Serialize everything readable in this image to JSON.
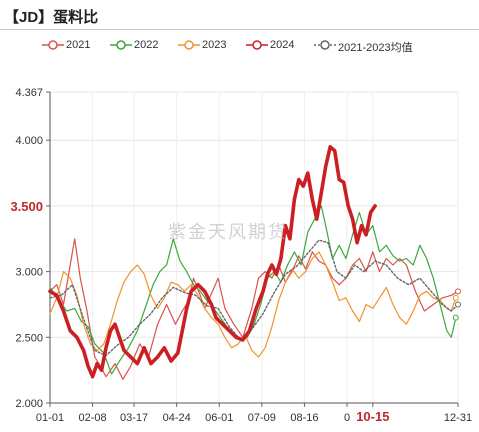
{
  "header": {
    "title": "【JD】蛋料比"
  },
  "watermark": "紫金天风期货",
  "chart_data": {
    "type": "line",
    "title": "【JD】蛋料比",
    "ylim": [
      2.0,
      4.367
    ],
    "y_ticks": [
      2.0,
      2.5,
      3.0,
      3.5,
      4.0,
      4.367
    ],
    "y_tick_labels": [
      "2.000",
      "2.500",
      "3.000",
      "3.500",
      "4.000",
      "4.367"
    ],
    "y_highlight": {
      "value": 3.5,
      "label": "3.500",
      "color": "#c0282e"
    },
    "x_tick_labels": [
      "01-01",
      "02-08",
      "03-17",
      "04-24",
      "06-01",
      "07-09",
      "08-16",
      "0",
      "10-15",
      "12-31"
    ],
    "x_tick_days": [
      0,
      38,
      75,
      113,
      151,
      189,
      227,
      265,
      288,
      364
    ],
    "x_highlight": {
      "label": "10-15",
      "color": "#c0282e"
    },
    "legend_position": "top",
    "series": [
      {
        "name": "2021",
        "color": "#d9534a",
        "width": 1.2,
        "dash": "",
        "points": [
          [
            0,
            2.85
          ],
          [
            6,
            2.9
          ],
          [
            12,
            2.75
          ],
          [
            18,
            3.05
          ],
          [
            22,
            3.25
          ],
          [
            27,
            2.95
          ],
          [
            33,
            2.7
          ],
          [
            40,
            2.35
          ],
          [
            45,
            2.28
          ],
          [
            50,
            2.2
          ],
          [
            58,
            2.3
          ],
          [
            65,
            2.18
          ],
          [
            72,
            2.28
          ],
          [
            80,
            2.45
          ],
          [
            88,
            2.35
          ],
          [
            96,
            2.6
          ],
          [
            104,
            2.75
          ],
          [
            112,
            2.6
          ],
          [
            118,
            2.7
          ],
          [
            124,
            2.78
          ],
          [
            128,
            2.95
          ],
          [
            134,
            2.82
          ],
          [
            138,
            2.72
          ],
          [
            145,
            2.85
          ],
          [
            150,
            2.95
          ],
          [
            156,
            2.72
          ],
          [
            164,
            2.6
          ],
          [
            172,
            2.5
          ],
          [
            180,
            2.72
          ],
          [
            186,
            2.95
          ],
          [
            192,
            3.0
          ],
          [
            198,
            2.95
          ],
          [
            204,
            3.05
          ],
          [
            210,
            2.92
          ],
          [
            216,
            3.0
          ],
          [
            222,
            3.12
          ],
          [
            228,
            3.02
          ],
          [
            234,
            3.15
          ],
          [
            240,
            3.08
          ],
          [
            246,
            3.05
          ],
          [
            252,
            2.95
          ],
          [
            258,
            2.9
          ],
          [
            264,
            2.95
          ],
          [
            270,
            3.05
          ],
          [
            276,
            3.1
          ],
          [
            282,
            3.0
          ],
          [
            288,
            3.15
          ],
          [
            294,
            3.0
          ],
          [
            300,
            3.1
          ],
          [
            306,
            3.05
          ],
          [
            312,
            3.1
          ],
          [
            318,
            3.05
          ],
          [
            326,
            2.85
          ],
          [
            334,
            2.7
          ],
          [
            342,
            2.75
          ],
          [
            350,
            2.8
          ],
          [
            358,
            2.82
          ],
          [
            364,
            2.85
          ]
        ]
      },
      {
        "name": "2022",
        "color": "#3da83d",
        "width": 1.2,
        "dash": "",
        "points": [
          [
            0,
            2.88
          ],
          [
            8,
            2.78
          ],
          [
            15,
            2.7
          ],
          [
            22,
            2.72
          ],
          [
            28,
            2.62
          ],
          [
            34,
            2.58
          ],
          [
            40,
            2.45
          ],
          [
            48,
            2.38
          ],
          [
            55,
            2.22
          ],
          [
            62,
            2.32
          ],
          [
            70,
            2.42
          ],
          [
            78,
            2.55
          ],
          [
            86,
            2.75
          ],
          [
            92,
            2.9
          ],
          [
            98,
            3.0
          ],
          [
            104,
            3.05
          ],
          [
            110,
            3.25
          ],
          [
            116,
            3.08
          ],
          [
            122,
            3.0
          ],
          [
            128,
            2.9
          ],
          [
            134,
            2.85
          ],
          [
            140,
            2.78
          ],
          [
            146,
            2.72
          ],
          [
            152,
            2.65
          ],
          [
            158,
            2.58
          ],
          [
            164,
            2.52
          ],
          [
            170,
            2.48
          ],
          [
            176,
            2.5
          ],
          [
            182,
            2.6
          ],
          [
            188,
            2.75
          ],
          [
            194,
            2.95
          ],
          [
            200,
            3.0
          ],
          [
            206,
            2.92
          ],
          [
            212,
            3.05
          ],
          [
            218,
            3.15
          ],
          [
            224,
            3.05
          ],
          [
            230,
            3.3
          ],
          [
            236,
            3.4
          ],
          [
            242,
            3.5
          ],
          [
            246,
            3.35
          ],
          [
            252,
            3.1
          ],
          [
            258,
            3.2
          ],
          [
            264,
            3.1
          ],
          [
            270,
            3.28
          ],
          [
            276,
            3.45
          ],
          [
            282,
            3.28
          ],
          [
            288,
            3.35
          ],
          [
            294,
            3.15
          ],
          [
            300,
            3.2
          ],
          [
            306,
            3.12
          ],
          [
            312,
            3.08
          ],
          [
            318,
            3.1
          ],
          [
            324,
            3.05
          ],
          [
            330,
            3.2
          ],
          [
            336,
            3.1
          ],
          [
            342,
            2.95
          ],
          [
            348,
            2.75
          ],
          [
            354,
            2.55
          ],
          [
            358,
            2.5
          ],
          [
            362,
            2.65
          ]
        ]
      },
      {
        "name": "2023",
        "color": "#f0932b",
        "width": 1.2,
        "dash": "",
        "points": [
          [
            0,
            2.68
          ],
          [
            6,
            2.8
          ],
          [
            12,
            3.0
          ],
          [
            18,
            2.95
          ],
          [
            24,
            2.82
          ],
          [
            30,
            2.6
          ],
          [
            36,
            2.45
          ],
          [
            42,
            2.4
          ],
          [
            48,
            2.45
          ],
          [
            54,
            2.6
          ],
          [
            60,
            2.78
          ],
          [
            66,
            2.92
          ],
          [
            72,
            3.0
          ],
          [
            78,
            3.05
          ],
          [
            84,
            2.98
          ],
          [
            90,
            2.82
          ],
          [
            96,
            2.72
          ],
          [
            102,
            2.8
          ],
          [
            108,
            2.92
          ],
          [
            114,
            2.9
          ],
          [
            120,
            2.85
          ],
          [
            126,
            2.9
          ],
          [
            132,
            2.82
          ],
          [
            138,
            2.72
          ],
          [
            144,
            2.65
          ],
          [
            150,
            2.6
          ],
          [
            156,
            2.5
          ],
          [
            162,
            2.42
          ],
          [
            168,
            2.45
          ],
          [
            174,
            2.52
          ],
          [
            180,
            2.4
          ],
          [
            186,
            2.35
          ],
          [
            192,
            2.42
          ],
          [
            198,
            2.58
          ],
          [
            204,
            2.78
          ],
          [
            210,
            2.92
          ],
          [
            216,
            3.02
          ],
          [
            222,
            2.95
          ],
          [
            228,
            3.0
          ],
          [
            234,
            3.1
          ],
          [
            240,
            3.15
          ],
          [
            246,
            3.05
          ],
          [
            252,
            2.92
          ],
          [
            258,
            2.78
          ],
          [
            264,
            2.8
          ],
          [
            270,
            2.7
          ],
          [
            276,
            2.62
          ],
          [
            282,
            2.75
          ],
          [
            288,
            2.72
          ],
          [
            294,
            2.8
          ],
          [
            300,
            2.88
          ],
          [
            306,
            2.75
          ],
          [
            312,
            2.65
          ],
          [
            318,
            2.6
          ],
          [
            324,
            2.7
          ],
          [
            330,
            2.82
          ],
          [
            336,
            2.85
          ],
          [
            342,
            2.8
          ],
          [
            348,
            2.78
          ],
          [
            354,
            2.72
          ],
          [
            358,
            2.7
          ],
          [
            362,
            2.8
          ]
        ]
      },
      {
        "name": "2024",
        "color": "#cc1f24",
        "width": 3.6,
        "dash": "",
        "points": [
          [
            0,
            2.85
          ],
          [
            6,
            2.82
          ],
          [
            12,
            2.7
          ],
          [
            18,
            2.55
          ],
          [
            24,
            2.5
          ],
          [
            30,
            2.4
          ],
          [
            34,
            2.28
          ],
          [
            38,
            2.2
          ],
          [
            42,
            2.3
          ],
          [
            46,
            2.25
          ],
          [
            50,
            2.42
          ],
          [
            54,
            2.55
          ],
          [
            58,
            2.6
          ],
          [
            62,
            2.5
          ],
          [
            66,
            2.4
          ],
          [
            72,
            2.35
          ],
          [
            78,
            2.3
          ],
          [
            84,
            2.42
          ],
          [
            90,
            2.3
          ],
          [
            96,
            2.35
          ],
          [
            102,
            2.42
          ],
          [
            108,
            2.32
          ],
          [
            114,
            2.38
          ],
          [
            118,
            2.55
          ],
          [
            122,
            2.72
          ],
          [
            126,
            2.85
          ],
          [
            132,
            2.9
          ],
          [
            138,
            2.85
          ],
          [
            144,
            2.75
          ],
          [
            148,
            2.65
          ],
          [
            154,
            2.6
          ],
          [
            160,
            2.55
          ],
          [
            166,
            2.5
          ],
          [
            172,
            2.48
          ],
          [
            178,
            2.55
          ],
          [
            184,
            2.72
          ],
          [
            190,
            2.85
          ],
          [
            194,
            2.98
          ],
          [
            198,
            3.05
          ],
          [
            202,
            2.98
          ],
          [
            206,
            3.1
          ],
          [
            210,
            3.35
          ],
          [
            214,
            3.25
          ],
          [
            218,
            3.55
          ],
          [
            222,
            3.7
          ],
          [
            226,
            3.65
          ],
          [
            230,
            3.75
          ],
          [
            234,
            3.55
          ],
          [
            238,
            3.4
          ],
          [
            242,
            3.6
          ],
          [
            246,
            3.8
          ],
          [
            250,
            3.95
          ],
          [
            254,
            3.92
          ],
          [
            258,
            3.7
          ],
          [
            262,
            3.68
          ],
          [
            266,
            3.5
          ],
          [
            270,
            3.4
          ],
          [
            274,
            3.22
          ],
          [
            278,
            3.35
          ],
          [
            282,
            3.28
          ],
          [
            286,
            3.45
          ],
          [
            290,
            3.5
          ]
        ]
      },
      {
        "name": "2021-2023均值",
        "color": "#666666",
        "width": 1.4,
        "dash": "2,2",
        "points": [
          [
            0,
            2.8
          ],
          [
            10,
            2.82
          ],
          [
            20,
            2.9
          ],
          [
            30,
            2.64
          ],
          [
            40,
            2.4
          ],
          [
            50,
            2.36
          ],
          [
            60,
            2.44
          ],
          [
            70,
            2.5
          ],
          [
            80,
            2.6
          ],
          [
            90,
            2.68
          ],
          [
            100,
            2.8
          ],
          [
            110,
            2.88
          ],
          [
            120,
            2.84
          ],
          [
            130,
            2.82
          ],
          [
            140,
            2.74
          ],
          [
            150,
            2.72
          ],
          [
            160,
            2.58
          ],
          [
            170,
            2.48
          ],
          [
            180,
            2.56
          ],
          [
            190,
            2.68
          ],
          [
            200,
            2.84
          ],
          [
            210,
            2.98
          ],
          [
            220,
            3.04
          ],
          [
            230,
            3.14
          ],
          [
            240,
            3.24
          ],
          [
            248,
            3.22
          ],
          [
            256,
            3.0
          ],
          [
            264,
            2.95
          ],
          [
            272,
            3.05
          ],
          [
            280,
            3.0
          ],
          [
            290,
            3.08
          ],
          [
            300,
            3.05
          ],
          [
            310,
            2.95
          ],
          [
            320,
            2.9
          ],
          [
            330,
            2.95
          ],
          [
            340,
            2.85
          ],
          [
            350,
            2.75
          ],
          [
            358,
            2.7
          ],
          [
            364,
            2.75
          ]
        ]
      }
    ]
  }
}
